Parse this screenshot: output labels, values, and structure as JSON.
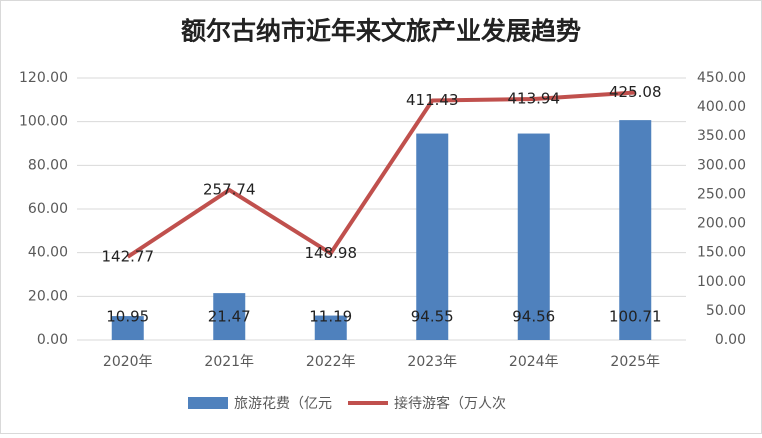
{
  "chart_data": {
    "type": "bar-line",
    "title": "额尔古纳市近年来文旅产业发展趋势",
    "categories": [
      "2020年",
      "2021年",
      "2022年",
      "2023年",
      "2024年",
      "2025年"
    ],
    "series": [
      {
        "name": "旅游花费（亿元",
        "color": "#4f81bd",
        "type": "bar",
        "values": [
          10.95,
          21.47,
          11.19,
          94.55,
          94.56,
          100.71
        ]
      },
      {
        "name": "接待游客（万人次",
        "color": "#c0504d",
        "type": "line",
        "axis": "y2",
        "values": [
          142.77,
          257.74,
          148.98,
          411.43,
          413.94,
          425.08
        ]
      }
    ],
    "ylim": [
      0,
      120
    ],
    "yticks": [
      {
        "value": 0,
        "label": "0.00"
      },
      {
        "value": 20,
        "label": "20.00"
      },
      {
        "value": 40,
        "label": "40.00"
      },
      {
        "value": 60,
        "label": "60.00"
      },
      {
        "value": 80,
        "label": "80.00"
      },
      {
        "value": 100,
        "label": "100.00"
      },
      {
        "value": 120,
        "label": "120.00"
      }
    ],
    "y2lim": [
      0,
      450
    ],
    "y2ticks": [
      {
        "value": 0,
        "label": "0.00"
      },
      {
        "value": 50,
        "label": "50.00"
      },
      {
        "value": 100,
        "label": "100.00"
      },
      {
        "value": 150,
        "label": "150.00"
      },
      {
        "value": 200,
        "label": "200.00"
      },
      {
        "value": 250,
        "label": "250.00"
      },
      {
        "value": 300,
        "label": "300.00"
      },
      {
        "value": 350,
        "label": "350.00"
      },
      {
        "value": 400,
        "label": "400.00"
      },
      {
        "value": 450,
        "label": "450.00"
      }
    ],
    "grid": true,
    "legend": "bottom"
  }
}
